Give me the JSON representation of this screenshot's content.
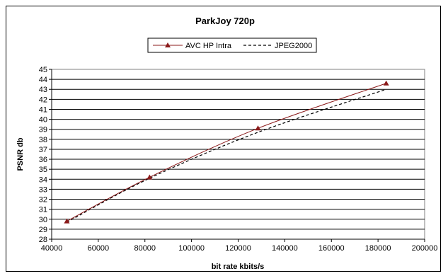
{
  "chart_data": {
    "type": "line",
    "title": "ParkJoy 720p",
    "xlabel": "bit rate kbits/s",
    "ylabel": "PSNR db",
    "xlim": [
      40000,
      200000
    ],
    "ylim": [
      28,
      45
    ],
    "x_ticks": [
      40000,
      60000,
      80000,
      100000,
      120000,
      140000,
      160000,
      180000,
      200000
    ],
    "y_ticks": [
      28,
      29,
      30,
      31,
      32,
      33,
      34,
      35,
      36,
      37,
      38,
      39,
      40,
      41,
      42,
      43,
      44,
      45
    ],
    "grid": "horizontal",
    "legend_position": "top",
    "series": [
      {
        "name": "AVC HP Intra",
        "color": "#8b1a1a",
        "marker": "triangle",
        "line_style": "solid",
        "x": [
          46500,
          82000,
          128500,
          183500
        ],
        "y": [
          29.8,
          34.2,
          39.1,
          43.6
        ]
      },
      {
        "name": "JPEG2000",
        "color": "#000000",
        "marker": "none",
        "line_style": "dashed",
        "x": [
          46500,
          82000,
          128500,
          183500
        ],
        "y": [
          29.7,
          34.1,
          38.7,
          43.0
        ]
      }
    ]
  }
}
